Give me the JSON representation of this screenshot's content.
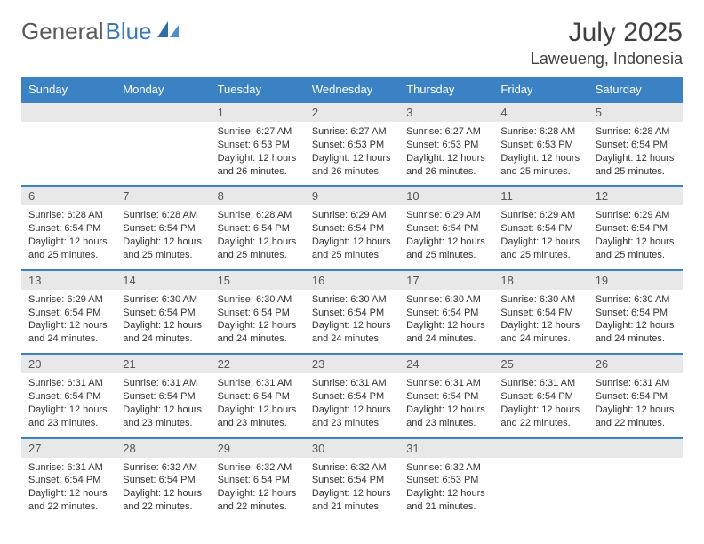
{
  "brand": {
    "part1": "General",
    "part2": "Blue"
  },
  "title": "July 2025",
  "location": "Laweueng, Indonesia",
  "colors": {
    "header_bg": "#3b82c4",
    "header_text": "#ffffff",
    "daynum_bg": "#e8e8e8",
    "daynum_text": "#555555",
    "border": "#3b82c4",
    "brand_gray": "#5a5a5a",
    "brand_blue": "#3a7ab8"
  },
  "days_of_week": [
    "Sunday",
    "Monday",
    "Tuesday",
    "Wednesday",
    "Thursday",
    "Friday",
    "Saturday"
  ],
  "weeks": [
    [
      null,
      null,
      {
        "num": "1",
        "sunrise": "Sunrise: 6:27 AM",
        "sunset": "Sunset: 6:53 PM",
        "daylight": "Daylight: 12 hours and 26 minutes."
      },
      {
        "num": "2",
        "sunrise": "Sunrise: 6:27 AM",
        "sunset": "Sunset: 6:53 PM",
        "daylight": "Daylight: 12 hours and 26 minutes."
      },
      {
        "num": "3",
        "sunrise": "Sunrise: 6:27 AM",
        "sunset": "Sunset: 6:53 PM",
        "daylight": "Daylight: 12 hours and 26 minutes."
      },
      {
        "num": "4",
        "sunrise": "Sunrise: 6:28 AM",
        "sunset": "Sunset: 6:53 PM",
        "daylight": "Daylight: 12 hours and 25 minutes."
      },
      {
        "num": "5",
        "sunrise": "Sunrise: 6:28 AM",
        "sunset": "Sunset: 6:54 PM",
        "daylight": "Daylight: 12 hours and 25 minutes."
      }
    ],
    [
      {
        "num": "6",
        "sunrise": "Sunrise: 6:28 AM",
        "sunset": "Sunset: 6:54 PM",
        "daylight": "Daylight: 12 hours and 25 minutes."
      },
      {
        "num": "7",
        "sunrise": "Sunrise: 6:28 AM",
        "sunset": "Sunset: 6:54 PM",
        "daylight": "Daylight: 12 hours and 25 minutes."
      },
      {
        "num": "8",
        "sunrise": "Sunrise: 6:28 AM",
        "sunset": "Sunset: 6:54 PM",
        "daylight": "Daylight: 12 hours and 25 minutes."
      },
      {
        "num": "9",
        "sunrise": "Sunrise: 6:29 AM",
        "sunset": "Sunset: 6:54 PM",
        "daylight": "Daylight: 12 hours and 25 minutes."
      },
      {
        "num": "10",
        "sunrise": "Sunrise: 6:29 AM",
        "sunset": "Sunset: 6:54 PM",
        "daylight": "Daylight: 12 hours and 25 minutes."
      },
      {
        "num": "11",
        "sunrise": "Sunrise: 6:29 AM",
        "sunset": "Sunset: 6:54 PM",
        "daylight": "Daylight: 12 hours and 25 minutes."
      },
      {
        "num": "12",
        "sunrise": "Sunrise: 6:29 AM",
        "sunset": "Sunset: 6:54 PM",
        "daylight": "Daylight: 12 hours and 25 minutes."
      }
    ],
    [
      {
        "num": "13",
        "sunrise": "Sunrise: 6:29 AM",
        "sunset": "Sunset: 6:54 PM",
        "daylight": "Daylight: 12 hours and 24 minutes."
      },
      {
        "num": "14",
        "sunrise": "Sunrise: 6:30 AM",
        "sunset": "Sunset: 6:54 PM",
        "daylight": "Daylight: 12 hours and 24 minutes."
      },
      {
        "num": "15",
        "sunrise": "Sunrise: 6:30 AM",
        "sunset": "Sunset: 6:54 PM",
        "daylight": "Daylight: 12 hours and 24 minutes."
      },
      {
        "num": "16",
        "sunrise": "Sunrise: 6:30 AM",
        "sunset": "Sunset: 6:54 PM",
        "daylight": "Daylight: 12 hours and 24 minutes."
      },
      {
        "num": "17",
        "sunrise": "Sunrise: 6:30 AM",
        "sunset": "Sunset: 6:54 PM",
        "daylight": "Daylight: 12 hours and 24 minutes."
      },
      {
        "num": "18",
        "sunrise": "Sunrise: 6:30 AM",
        "sunset": "Sunset: 6:54 PM",
        "daylight": "Daylight: 12 hours and 24 minutes."
      },
      {
        "num": "19",
        "sunrise": "Sunrise: 6:30 AM",
        "sunset": "Sunset: 6:54 PM",
        "daylight": "Daylight: 12 hours and 24 minutes."
      }
    ],
    [
      {
        "num": "20",
        "sunrise": "Sunrise: 6:31 AM",
        "sunset": "Sunset: 6:54 PM",
        "daylight": "Daylight: 12 hours and 23 minutes."
      },
      {
        "num": "21",
        "sunrise": "Sunrise: 6:31 AM",
        "sunset": "Sunset: 6:54 PM",
        "daylight": "Daylight: 12 hours and 23 minutes."
      },
      {
        "num": "22",
        "sunrise": "Sunrise: 6:31 AM",
        "sunset": "Sunset: 6:54 PM",
        "daylight": "Daylight: 12 hours and 23 minutes."
      },
      {
        "num": "23",
        "sunrise": "Sunrise: 6:31 AM",
        "sunset": "Sunset: 6:54 PM",
        "daylight": "Daylight: 12 hours and 23 minutes."
      },
      {
        "num": "24",
        "sunrise": "Sunrise: 6:31 AM",
        "sunset": "Sunset: 6:54 PM",
        "daylight": "Daylight: 12 hours and 23 minutes."
      },
      {
        "num": "25",
        "sunrise": "Sunrise: 6:31 AM",
        "sunset": "Sunset: 6:54 PM",
        "daylight": "Daylight: 12 hours and 22 minutes."
      },
      {
        "num": "26",
        "sunrise": "Sunrise: 6:31 AM",
        "sunset": "Sunset: 6:54 PM",
        "daylight": "Daylight: 12 hours and 22 minutes."
      }
    ],
    [
      {
        "num": "27",
        "sunrise": "Sunrise: 6:31 AM",
        "sunset": "Sunset: 6:54 PM",
        "daylight": "Daylight: 12 hours and 22 minutes."
      },
      {
        "num": "28",
        "sunrise": "Sunrise: 6:32 AM",
        "sunset": "Sunset: 6:54 PM",
        "daylight": "Daylight: 12 hours and 22 minutes."
      },
      {
        "num": "29",
        "sunrise": "Sunrise: 6:32 AM",
        "sunset": "Sunset: 6:54 PM",
        "daylight": "Daylight: 12 hours and 22 minutes."
      },
      {
        "num": "30",
        "sunrise": "Sunrise: 6:32 AM",
        "sunset": "Sunset: 6:54 PM",
        "daylight": "Daylight: 12 hours and 21 minutes."
      },
      {
        "num": "31",
        "sunrise": "Sunrise: 6:32 AM",
        "sunset": "Sunset: 6:53 PM",
        "daylight": "Daylight: 12 hours and 21 minutes."
      },
      null,
      null
    ]
  ]
}
